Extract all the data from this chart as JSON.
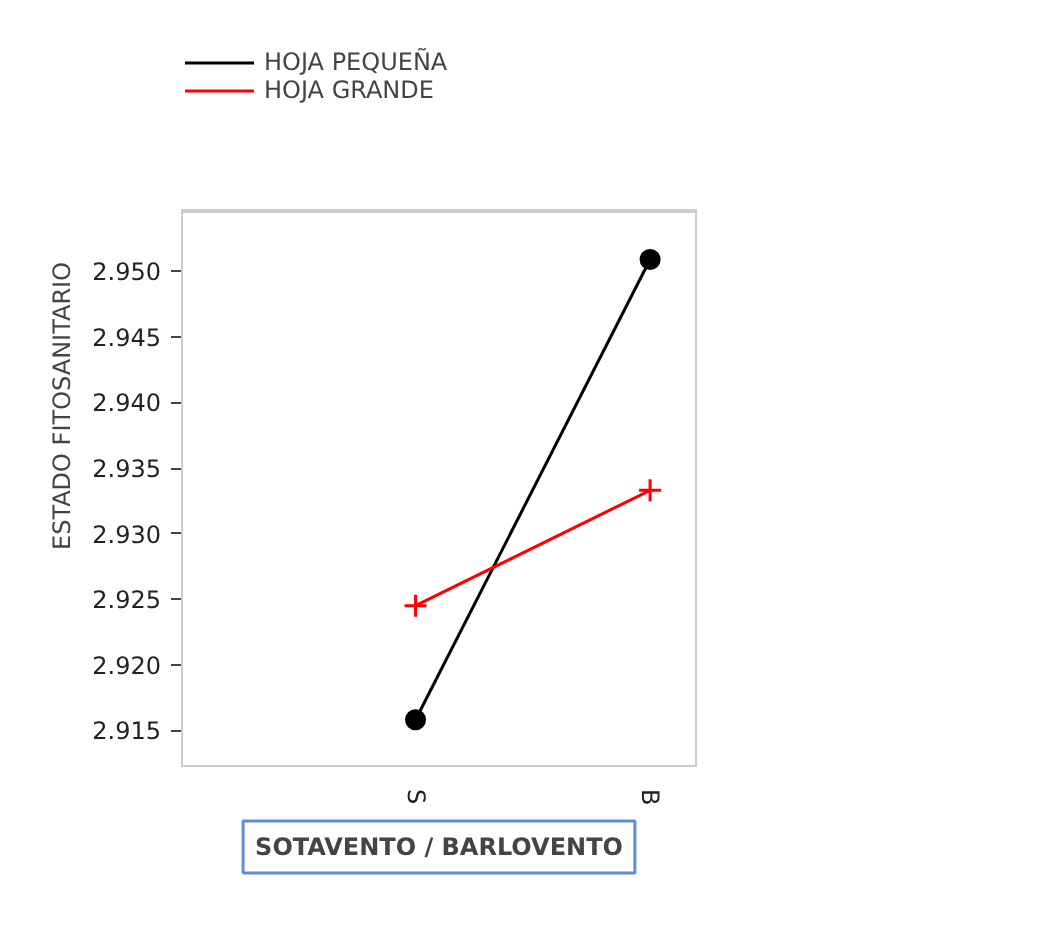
{
  "chart_data": {
    "type": "line",
    "xlabel": "SOTAVENTO / BARLOVENTO",
    "ylabel": "ESTADO FITOSANITARIO",
    "categories": [
      "S",
      "B"
    ],
    "series": [
      {
        "name": "HOJA PEQUEÑA",
        "color": "#000000",
        "marker": "circle",
        "values": [
          2.9158,
          2.9509
        ]
      },
      {
        "name": "HOJA GRANDE",
        "color": "#ff0000",
        "marker": "cross",
        "values": [
          2.9245,
          2.9333
        ]
      }
    ],
    "ylim": [
      2.9122,
      2.9546
    ],
    "yticks": [
      {
        "value": 2.915,
        "label": "2.915"
      },
      {
        "value": 2.92,
        "label": "2.920"
      },
      {
        "value": 2.925,
        "label": "2.925"
      },
      {
        "value": 2.93,
        "label": "2.930"
      },
      {
        "value": 2.935,
        "label": "2.935"
      },
      {
        "value": 2.94,
        "label": "2.940"
      },
      {
        "value": 2.945,
        "label": "2.945"
      },
      {
        "value": 2.95,
        "label": "2.950"
      }
    ],
    "grid": false,
    "legend": "top left"
  }
}
